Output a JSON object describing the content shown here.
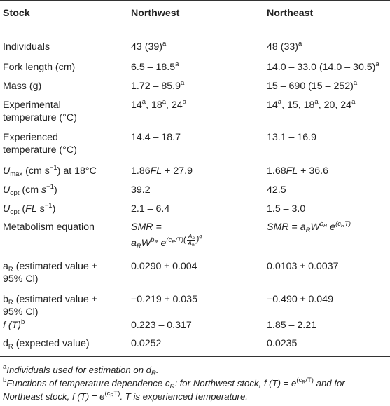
{
  "table": {
    "headers": [
      "Stock",
      "Northwest",
      "Northeast"
    ],
    "rows": {
      "individuals": {
        "label": "Individuals",
        "nw": "43 (39)",
        "nw_sup": "a",
        "ne": "48 (33)",
        "ne_sup": "a"
      },
      "fork_length": {
        "label": "Fork length (cm)",
        "nw": "6.5 – 18.5",
        "nw_sup": "a",
        "ne": "14.0 – 33.0 (14.0 – 30.5)",
        "ne_sup": "a"
      },
      "mass": {
        "label": "Mass (g)",
        "nw": "1.72 – 85.9",
        "nw_sup": "a",
        "ne": "15 – 690 (15 – 252)",
        "ne_sup": "a"
      },
      "exp_temp": {
        "label_line1": "Experimental",
        "label_line2": "temperature (°C)",
        "nw_a": "14",
        "nw_b": "18",
        "nw_c": "24",
        "sup": "a",
        "sep": ", ",
        "ne_a": "14",
        "ne_b": "15",
        "ne_c": "18",
        "ne_d": "20",
        "ne_e": "24"
      },
      "experienced_temp": {
        "label_line1": "Experienced",
        "label_line2": "temperature (°C)",
        "nw": "14.4 – 18.7",
        "ne": "13.1 – 16.9"
      },
      "umax": {
        "sym": "U",
        "sub": "max",
        "unit": " (cm s",
        "exp": "−1",
        "tail": ") at 18°C",
        "nw_a": "1.86",
        "nw_fl": "FL",
        "nw_b": " + 27.9",
        "ne_a": "1.68",
        "ne_fl": "FL",
        "ne_b": " + 36.6"
      },
      "uopt_cm": {
        "sym": "U",
        "sub": "opt",
        "unit": " (cm ",
        "s": "s",
        "exp": "−1",
        "close": ")",
        "nw": "39.2",
        "ne": "42.5"
      },
      "uopt_fl": {
        "sym": "U",
        "sub": "opt",
        "open": " (",
        "fl": "FL",
        "s": " s",
        "exp": "−1",
        "close": ")",
        "nw": "2.1 – 6.4",
        "ne": "1.5 – 3.0"
      },
      "metabolism": {
        "label": "Metabolism equation",
        "nw_line1": "SMR =",
        "nw_a": "a",
        "nw_r": "R",
        "nw_w": "W",
        "nw_b": "b",
        "nw_e": " e",
        "nw_exp": "(c",
        "nw_exp2": "/T)",
        "frac_num": "A",
        "frac_num_sub": "a",
        "frac_den": "A",
        "frac_den_sub": "w",
        "q": "q",
        "ne_smr": "SMR",
        "ne_eq": " = ",
        "ne_a": "a",
        "ne_r": "R",
        "ne_w": "W",
        "ne_b": "b",
        "ne_e": " e",
        "ne_exp": "(c",
        "ne_exp2": "T)"
      },
      "ar": {
        "sym": "a",
        "sub": "R",
        "line1": " (estimated value ±",
        "line2": "95% Cl)",
        "nw": "0.0290 ± 0.004",
        "ne": "0.0103 ± 0.0037"
      },
      "br": {
        "sym": "b",
        "sub": "R",
        "line1": " (estimated value ±",
        "line2": "95% Cl)",
        "nw": "−0.219 ± 0.035",
        "ne": "−0.490 ± 0.049"
      },
      "ft": {
        "sym": "f (T)",
        "sup": "b",
        "nw": "0.223 – 0.317",
        "ne": "1.85 – 2.21"
      },
      "dr": {
        "sym": "d",
        "sub": "R",
        "tail": " (expected value)",
        "nw": "0.0252",
        "ne": "0.0235"
      }
    }
  },
  "footnotes": {
    "a_mark": "a",
    "a_text": "Individuals used for estimation on d",
    "a_sub": "R",
    "a_end": ".",
    "b_mark": "b",
    "b_text1": "Functions of temperature dependence c",
    "b_sub1": "R",
    "b_text2": ": for Northwest stock, f (T) = e",
    "b_exp1": "(c",
    "b_exp1_sub": "R",
    "b_exp1_end": "/T)",
    "b_text3": " and for",
    "b_text4": "Northeast stock, f (T) = e",
    "b_exp2": "(c",
    "b_exp2_sub": "R",
    "b_exp2_end": "T)",
    "b_text5": ". T is experienced temperature."
  }
}
